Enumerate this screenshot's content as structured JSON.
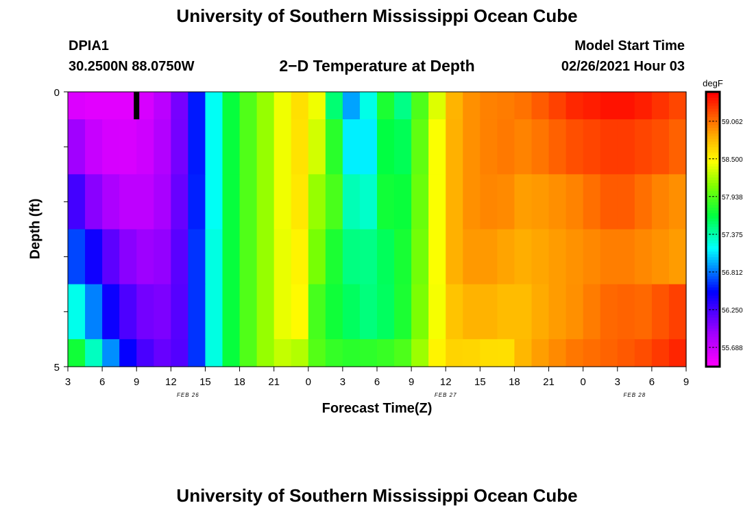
{
  "header": {
    "title": "University of Southern Mississippi Ocean Cube",
    "station_id": "DPIA1",
    "location": "30.2500N 88.0750W",
    "subtitle": "2−D Temperature at Depth",
    "model_start_label": "Model Start Time",
    "model_start_value": "02/26/2021 Hour 03"
  },
  "footer": {
    "title": "University of Southern Mississippi Ocean Cube"
  },
  "chart_data": {
    "type": "heatmap",
    "xlabel": "Forecast Time(Z)",
    "ylabel": "Depth (ft)",
    "x_tick_labels": [
      "3",
      "6",
      "9",
      "12",
      "15",
      "18",
      "21",
      "0",
      "3",
      "6",
      "9",
      "12",
      "15",
      "18",
      "21",
      "0",
      "3",
      "6",
      "9"
    ],
    "date_labels": [
      {
        "label": "FEB 26",
        "at_tick": 3.5
      },
      {
        "label": "FEB 27",
        "at_tick": 11
      },
      {
        "label": "FEB 28",
        "at_tick": 16.5
      }
    ],
    "y_range": [
      0,
      5
    ],
    "y_tick_labels": [
      {
        "value": 0,
        "label": "0"
      },
      {
        "value": 5,
        "label": "5"
      }
    ],
    "depth_rows": [
      0,
      1,
      2,
      3,
      4,
      5
    ],
    "hours_from_start": [
      0,
      54
    ],
    "colorbar": {
      "unit": "degF",
      "range": [
        55.4,
        59.5
      ],
      "ticks": [
        "55.688",
        "56.250",
        "56.812",
        "57.375",
        "57.938",
        "58.500",
        "59.062"
      ],
      "stops": [
        {
          "t": 0.0,
          "color": "#ff00ff"
        },
        {
          "t": 0.12,
          "color": "#a000ff"
        },
        {
          "t": 0.27,
          "color": "#0000ff"
        },
        {
          "t": 0.35,
          "color": "#0080ff"
        },
        {
          "t": 0.43,
          "color": "#00ffff"
        },
        {
          "t": 0.55,
          "color": "#00ff40"
        },
        {
          "t": 0.66,
          "color": "#80ff00"
        },
        {
          "t": 0.75,
          "color": "#ffff00"
        },
        {
          "t": 0.84,
          "color": "#ffb000"
        },
        {
          "t": 1.0,
          "color": "#ff0000"
        }
      ]
    },
    "hour_samples": [
      0,
      2,
      4,
      6,
      8,
      10,
      12,
      13,
      14,
      15,
      16,
      18,
      20,
      22,
      24,
      25,
      26,
      27,
      28,
      29,
      30,
      32,
      34,
      36,
      38,
      39,
      40,
      42,
      44,
      46,
      48,
      50,
      52,
      54
    ],
    "temperature_degF": [
      [
        55.6,
        55.55,
        55.55,
        55.55,
        55.7,
        56.1,
        56.85,
        57.3,
        57.6,
        57.9,
        57.95,
        58.3,
        58.65,
        58.4,
        57.0,
        56.9,
        57.1,
        57.6,
        57.8,
        57.4,
        57.7,
        58.3,
        58.9,
        59.0,
        59.05,
        59.0,
        59.1,
        59.2,
        59.35,
        59.4,
        59.45,
        59.4,
        59.3,
        59.2
      ],
      [
        56.0,
        55.7,
        55.6,
        55.6,
        55.75,
        56.1,
        56.85,
        57.3,
        57.6,
        57.9,
        57.95,
        58.3,
        58.65,
        58.3,
        57.5,
        57.0,
        57.0,
        57.5,
        57.7,
        57.55,
        57.75,
        58.4,
        58.9,
        59.0,
        59.05,
        59.05,
        59.0,
        59.1,
        59.2,
        59.25,
        59.3,
        59.25,
        59.2,
        59.1
      ],
      [
        56.4,
        56.0,
        55.8,
        55.7,
        55.8,
        56.15,
        56.85,
        57.3,
        57.6,
        57.9,
        57.95,
        58.3,
        58.65,
        58.1,
        57.8,
        57.2,
        57.2,
        57.6,
        57.75,
        57.65,
        57.8,
        58.4,
        58.9,
        59.0,
        59.0,
        58.95,
        58.9,
        58.95,
        59.0,
        59.1,
        59.2,
        59.1,
        59.0,
        58.95
      ],
      [
        56.8,
        56.5,
        56.1,
        55.9,
        55.9,
        56.2,
        56.9,
        57.35,
        57.6,
        57.9,
        57.95,
        58.3,
        58.6,
        58.0,
        57.6,
        57.45,
        57.45,
        57.55,
        57.6,
        57.7,
        57.85,
        58.4,
        58.9,
        58.95,
        58.9,
        58.85,
        58.85,
        58.9,
        58.95,
        59.0,
        59.05,
        59.0,
        58.95,
        58.9
      ],
      [
        57.4,
        56.9,
        56.4,
        56.1,
        56.0,
        56.2,
        56.9,
        57.35,
        57.6,
        57.9,
        57.95,
        58.3,
        58.6,
        57.8,
        57.65,
        57.55,
        57.5,
        57.5,
        57.6,
        57.7,
        57.9,
        58.4,
        58.8,
        58.85,
        58.8,
        58.75,
        58.8,
        58.9,
        58.95,
        59.05,
        59.15,
        59.1,
        59.2,
        59.3
      ],
      [
        57.9,
        57.4,
        56.8,
        56.3,
        56.1,
        56.2,
        56.9,
        57.35,
        57.6,
        57.9,
        57.95,
        58.3,
        58.3,
        57.9,
        57.8,
        57.8,
        57.8,
        57.85,
        57.85,
        57.9,
        58.0,
        58.5,
        58.7,
        58.65,
        58.6,
        58.7,
        58.85,
        58.95,
        59.05,
        59.1,
        59.15,
        59.2,
        59.3,
        59.4
      ]
    ],
    "marker": {
      "hour": 6,
      "depth_range": [
        0,
        0.5
      ]
    }
  }
}
